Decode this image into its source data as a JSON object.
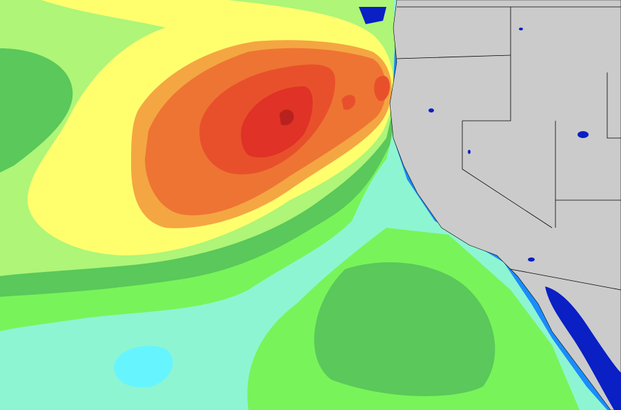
{
  "map": {
    "colors": {
      "ocean_base": "#8ef5d2",
      "level_1_green": "#78f45a",
      "level_2_dark_green": "#5ac85a",
      "level_3_light_green": "#aef578",
      "level_4_yellow": "#ffff6e",
      "level_5_light_orange": "#f4a642",
      "level_6_orange": "#ee7433",
      "level_7_red_orange": "#e8502c",
      "level_8_red": "#e03226",
      "level_9_dark_red": "#b8221e",
      "calm_cyan": "#66f5ff",
      "land": "#cbcbcb",
      "coast_blue": "#1a8cff",
      "lakes": "#0a1fc4",
      "borders": "#000000"
    }
  }
}
